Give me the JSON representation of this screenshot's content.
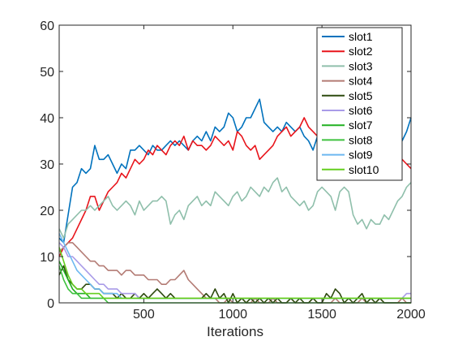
{
  "chart_data": {
    "type": "line",
    "title": "",
    "xlabel": "Iterations",
    "ylabel": "",
    "xlim": [
      25,
      2000
    ],
    "ylim": [
      0,
      60
    ],
    "xticks": [
      500,
      1000,
      1500,
      2000
    ],
    "yticks": [
      0,
      10,
      20,
      30,
      40,
      50,
      60
    ],
    "grid": false,
    "legend": "top-right",
    "x": [
      25,
      50,
      75,
      100,
      125,
      150,
      175,
      200,
      225,
      250,
      275,
      300,
      325,
      350,
      375,
      400,
      425,
      450,
      475,
      500,
      525,
      550,
      575,
      600,
      625,
      650,
      675,
      700,
      725,
      750,
      775,
      800,
      825,
      850,
      875,
      900,
      925,
      950,
      975,
      1000,
      1025,
      1050,
      1075,
      1100,
      1125,
      1150,
      1175,
      1200,
      1225,
      1250,
      1275,
      1300,
      1325,
      1350,
      1375,
      1400,
      1425,
      1450,
      1475,
      1500,
      1525,
      1550,
      1575,
      1600,
      1625,
      1650,
      1675,
      1700,
      1725,
      1750,
      1775,
      1800,
      1825,
      1850,
      1875,
      1900,
      1925,
      1950,
      1975,
      2000
    ],
    "series": [
      {
        "name": "slot1",
        "color": "#0072BD",
        "values": [
          14,
          13,
          19,
          25,
          26,
          29,
          28,
          29,
          34,
          31,
          31,
          32,
          30,
          28,
          30,
          29,
          33,
          33,
          34,
          33,
          32,
          34,
          33,
          33,
          34,
          35,
          34,
          35,
          34,
          33,
          35,
          36,
          35,
          37,
          35,
          38,
          37,
          38,
          41,
          40,
          37,
          38,
          40,
          40,
          42,
          44,
          39,
          38,
          37,
          38,
          37,
          39,
          38,
          37,
          38,
          36,
          35,
          33,
          36,
          35,
          34,
          33,
          33,
          32,
          34,
          35,
          33,
          34,
          35,
          36,
          34,
          35,
          33,
          34,
          36,
          38,
          36,
          35,
          37,
          40
        ]
      },
      {
        "name": "slot2",
        "color": "#E8141B",
        "values": [
          10,
          12,
          13,
          14,
          16,
          18,
          20,
          23,
          23,
          20,
          22,
          24,
          25,
          26,
          28,
          27,
          29,
          31,
          30,
          31,
          33,
          32,
          34,
          33,
          32,
          34,
          35,
          34,
          36,
          33,
          35,
          34,
          34,
          33,
          34,
          36,
          35,
          34,
          35,
          33,
          37,
          36,
          34,
          33,
          34,
          31,
          32,
          33,
          34,
          36,
          37,
          38,
          36,
          37,
          38,
          40,
          38,
          37,
          36,
          35,
          37,
          36,
          37,
          36,
          35,
          38,
          37,
          36,
          38,
          40,
          38,
          37,
          39,
          38,
          36,
          34,
          33,
          31,
          30,
          29
        ]
      },
      {
        "name": "slot3",
        "color": "#8FBFAB",
        "values": [
          16,
          14,
          17,
          18,
          19,
          20,
          20,
          21,
          20,
          21,
          22,
          23,
          21,
          20,
          21,
          22,
          21,
          19,
          22,
          20,
          21,
          22,
          22,
          23,
          22,
          17,
          19,
          20,
          18,
          21,
          22,
          23,
          21,
          22,
          21,
          24,
          23,
          22,
          21,
          23,
          24,
          22,
          23,
          25,
          24,
          23,
          25,
          24,
          26,
          27,
          24,
          25,
          23,
          22,
          21,
          22,
          20,
          21,
          24,
          25,
          24,
          23,
          20,
          24,
          25,
          24,
          19,
          17,
          18,
          16,
          18,
          17,
          17,
          19,
          18,
          20,
          22,
          23,
          25,
          26
        ]
      },
      {
        "name": "slot4",
        "color": "#B37B74",
        "values": [
          11,
          12,
          13,
          13,
          12,
          11,
          10,
          9,
          9,
          8,
          8,
          7,
          7,
          7,
          6,
          7,
          7,
          6,
          6,
          6,
          5,
          5,
          5,
          4,
          4,
          5,
          5,
          6,
          7,
          5,
          4,
          3,
          2,
          1,
          1,
          1,
          0,
          0,
          1,
          0,
          0,
          1,
          0,
          0,
          1,
          0,
          0,
          0,
          1,
          0,
          0,
          0,
          1,
          0,
          0,
          0,
          0,
          1,
          0,
          0,
          0,
          0,
          1,
          0,
          0,
          0,
          0,
          0,
          1,
          0,
          0,
          0,
          1,
          0,
          0,
          0,
          0,
          1,
          0,
          0
        ]
      },
      {
        "name": "slot5",
        "color": "#2E4A0F",
        "values": [
          6,
          8,
          5,
          4,
          3,
          3,
          4,
          4,
          3,
          3,
          2,
          2,
          2,
          1,
          2,
          1,
          1,
          2,
          1,
          2,
          1,
          2,
          3,
          2,
          1,
          2,
          1,
          1,
          1,
          1,
          1,
          1,
          1,
          2,
          1,
          3,
          1,
          2,
          0,
          2,
          0,
          1,
          0,
          1,
          0,
          1,
          0,
          1,
          0,
          1,
          0,
          0,
          1,
          0,
          1,
          0,
          0,
          1,
          0,
          0,
          2,
          1,
          3,
          2,
          0,
          1,
          0,
          1,
          2,
          0,
          1,
          0,
          1,
          0,
          0,
          0,
          0,
          0,
          0,
          0
        ]
      },
      {
        "name": "slot6",
        "color": "#A99BE8",
        "values": [
          13,
          12,
          10,
          10,
          9,
          8,
          7,
          6,
          5,
          4,
          4,
          3,
          3,
          3,
          2,
          2,
          2,
          2,
          1,
          1,
          1,
          1,
          1,
          1,
          1,
          1,
          1,
          1,
          1,
          1,
          1,
          1,
          1,
          1,
          1,
          1,
          1,
          1,
          1,
          1,
          1,
          1,
          1,
          1,
          1,
          1,
          1,
          1,
          1,
          1,
          1,
          1,
          1,
          1,
          1,
          1,
          1,
          1,
          1,
          1,
          1,
          1,
          1,
          1,
          1,
          1,
          1,
          1,
          1,
          1,
          1,
          1,
          1,
          1,
          1,
          1,
          1,
          1,
          2,
          2
        ]
      },
      {
        "name": "slot7",
        "color": "#21B021",
        "values": [
          9,
          7,
          5,
          3,
          2,
          2,
          2,
          1,
          1,
          1,
          1,
          1,
          1,
          1,
          1,
          1,
          1,
          1,
          1,
          1,
          1,
          1,
          1,
          1,
          1,
          1,
          1,
          1,
          1,
          1,
          1,
          1,
          1,
          1,
          1,
          1,
          1,
          1,
          1,
          1,
          1,
          1,
          1,
          1,
          1,
          1,
          1,
          1,
          1,
          1,
          1,
          1,
          1,
          1,
          1,
          1,
          1,
          1,
          1,
          1,
          1,
          1,
          1,
          1,
          1,
          1,
          1,
          1,
          1,
          1,
          1,
          1,
          1,
          1,
          1,
          1,
          1,
          1,
          1,
          1
        ]
      },
      {
        "name": "slot8",
        "color": "#3FC23F",
        "values": [
          8,
          5,
          3,
          2,
          2,
          1,
          1,
          1,
          1,
          1,
          1,
          0,
          0,
          0,
          0,
          0,
          0,
          0,
          0,
          0,
          0,
          0,
          0,
          0,
          0,
          0,
          0,
          0,
          0,
          0,
          0,
          0,
          0,
          0,
          0,
          0,
          0,
          0,
          0,
          0,
          0,
          0,
          0,
          0,
          0,
          0,
          0,
          0,
          0,
          0,
          0,
          0,
          0,
          0,
          0,
          0,
          0,
          0,
          0,
          0,
          0,
          0,
          0,
          0,
          0,
          0,
          0,
          0,
          0,
          0,
          0,
          0,
          0,
          0,
          0,
          0,
          0,
          0,
          0,
          0
        ]
      },
      {
        "name": "slot9",
        "color": "#6CB8F0",
        "values": [
          15,
          13,
          11,
          9,
          7,
          6,
          5,
          4,
          3,
          3,
          2,
          2,
          2,
          2,
          1,
          1,
          1,
          1,
          1,
          1,
          1,
          1,
          1,
          1,
          1,
          1,
          1,
          1,
          1,
          1,
          1,
          1,
          1,
          1,
          1,
          1,
          1,
          1,
          1,
          1,
          1,
          1,
          1,
          1,
          1,
          1,
          1,
          1,
          1,
          1,
          1,
          1,
          1,
          1,
          1,
          1,
          1,
          1,
          1,
          1,
          1,
          1,
          1,
          1,
          1,
          1,
          1,
          1,
          1,
          1,
          1,
          1,
          1,
          1,
          1,
          1,
          1,
          1,
          1,
          1
        ]
      },
      {
        "name": "slot10",
        "color": "#64CE1E",
        "values": [
          12,
          9,
          6,
          4,
          3,
          3,
          2,
          2,
          2,
          2,
          1,
          1,
          1,
          1,
          1,
          1,
          1,
          1,
          1,
          1,
          1,
          1,
          1,
          1,
          1,
          1,
          1,
          1,
          1,
          1,
          1,
          1,
          1,
          1,
          1,
          1,
          1,
          1,
          1,
          1,
          1,
          1,
          1,
          1,
          1,
          1,
          1,
          1,
          1,
          1,
          1,
          1,
          1,
          1,
          1,
          1,
          1,
          1,
          1,
          1,
          1,
          1,
          1,
          1,
          1,
          1,
          1,
          1,
          1,
          1,
          1,
          1,
          1,
          1,
          1,
          1,
          1,
          1,
          1,
          1
        ]
      }
    ]
  }
}
